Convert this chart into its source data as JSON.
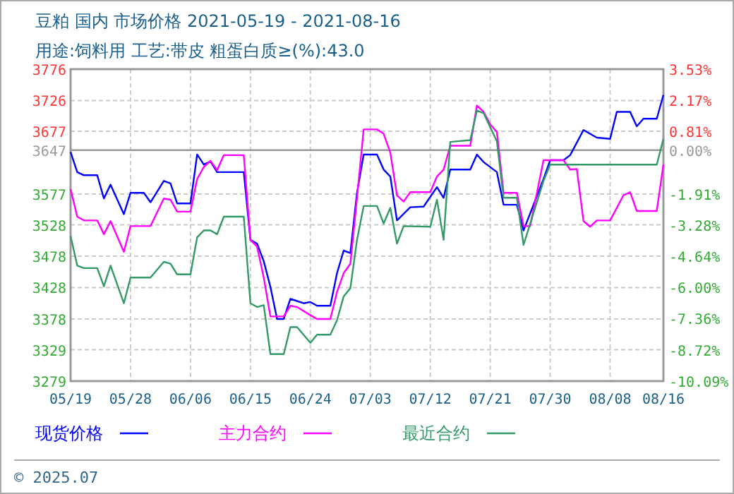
{
  "chart_data": {
    "type": "line",
    "title": "豆粕 国内 市场价格 2021-05-19 - 2021-08-16",
    "subtitle": "用途:饲料用 工艺:带皮 粗蛋白质≥(%):43.0",
    "xlim": [
      "2021-05-19",
      "2021-08-16"
    ],
    "xticks": [
      {
        "value": "2021-05-19",
        "label": "05/19"
      },
      {
        "value": "2021-05-28",
        "label": "05/28"
      },
      {
        "value": "2021-06-06",
        "label": "06/06"
      },
      {
        "value": "2021-06-15",
        "label": "06/15"
      },
      {
        "value": "2021-06-24",
        "label": "06/24"
      },
      {
        "value": "2021-07-03",
        "label": "07/03"
      },
      {
        "value": "2021-07-12",
        "label": "07/12"
      },
      {
        "value": "2021-07-21",
        "label": "07/21"
      },
      {
        "value": "2021-07-30",
        "label": "07/30"
      },
      {
        "value": "2021-08-08",
        "label": "08/08"
      },
      {
        "value": "2021-08-16",
        "label": "08/16"
      }
    ],
    "ylim": [
      3279,
      3776
    ],
    "yticks": [
      3776,
      3726,
      3677,
      3647,
      3577,
      3528,
      3478,
      3428,
      3378,
      3329,
      3279
    ],
    "y2lim": [
      -10.09,
      3.53
    ],
    "y2ticks": [
      {
        "value": 3.53,
        "label": "3.53%"
      },
      {
        "value": 2.17,
        "label": "2.17%"
      },
      {
        "value": 0.81,
        "label": "0.81%"
      },
      {
        "value": 0,
        "label": "0.00%"
      },
      {
        "value": -1.91,
        "label": "-1.91%"
      },
      {
        "value": -3.28,
        "label": "-3.28%"
      },
      {
        "value": -4.64,
        "label": "-4.64%"
      },
      {
        "value": -6.0,
        "label": "-6.00%"
      },
      {
        "value": -7.36,
        "label": "-7.36%"
      },
      {
        "value": -8.72,
        "label": "-8.72%"
      },
      {
        "value": -10.09,
        "label": "-10.09%"
      }
    ],
    "ref_lines": [
      {
        "axis": "y",
        "value": 3647,
        "color": "#999999"
      }
    ],
    "grid": true,
    "legend": "bottom",
    "marker": "none",
    "line_style": "solid",
    "annotations": [
      "© 2025.07"
    ],
    "series": [
      {
        "name": "现货价格",
        "color": "#0000ff",
        "x": [
          "2021-05-19",
          "2021-05-20",
          "2021-05-21",
          "2021-05-23",
          "2021-05-24",
          "2021-05-25",
          "2021-05-27",
          "2021-05-28",
          "2021-05-30",
          "2021-05-31",
          "2021-06-02",
          "2021-06-03",
          "2021-06-04",
          "2021-06-06",
          "2021-06-07",
          "2021-06-08",
          "2021-06-09",
          "2021-06-10",
          "2021-06-14",
          "2021-06-15",
          "2021-06-16",
          "2021-06-17",
          "2021-06-18",
          "2021-06-19",
          "2021-06-20",
          "2021-06-21",
          "2021-06-23",
          "2021-06-24",
          "2021-06-25",
          "2021-06-27",
          "2021-06-28",
          "2021-06-29",
          "2021-06-30",
          "2021-07-01",
          "2021-07-02",
          "2021-07-04",
          "2021-07-05",
          "2021-07-06",
          "2021-07-07",
          "2021-07-09",
          "2021-07-11",
          "2021-07-13",
          "2021-07-14",
          "2021-07-15",
          "2021-07-18",
          "2021-07-19",
          "2021-07-20",
          "2021-07-22",
          "2021-07-23",
          "2021-07-25",
          "2021-07-26",
          "2021-07-29",
          "2021-07-30",
          "2021-08-01",
          "2021-08-02",
          "2021-08-04",
          "2021-08-06",
          "2021-08-08",
          "2021-08-09",
          "2021-08-11",
          "2021-08-12",
          "2021-08-13",
          "2021-08-15",
          "2021-08-16"
        ],
        "values": [
          3644,
          3612,
          3607,
          3607,
          3570,
          3592,
          3545,
          3579,
          3579,
          3564,
          3598,
          3594,
          3562,
          3562,
          3640,
          3624,
          3629,
          3612,
          3612,
          3504,
          3498,
          3470,
          3429,
          3378,
          3378,
          3410,
          3403,
          3405,
          3399,
          3399,
          3451,
          3487,
          3483,
          3579,
          3640,
          3640,
          3616,
          3605,
          3535,
          3556,
          3557,
          3588,
          3571,
          3616,
          3616,
          3640,
          3628,
          3612,
          3560,
          3560,
          3519,
          3601,
          3631,
          3631,
          3639,
          3679,
          3667,
          3665,
          3708,
          3708,
          3685,
          3697,
          3697,
          3735
        ]
      },
      {
        "name": "主力合约",
        "color": "#ff00ff",
        "x": [
          "2021-05-19",
          "2021-05-20",
          "2021-05-21",
          "2021-05-23",
          "2021-05-24",
          "2021-05-25",
          "2021-05-27",
          "2021-05-28",
          "2021-05-31",
          "2021-06-02",
          "2021-06-03",
          "2021-06-04",
          "2021-06-06",
          "2021-06-07",
          "2021-06-08",
          "2021-06-09",
          "2021-06-10",
          "2021-06-11",
          "2021-06-14",
          "2021-06-15",
          "2021-06-16",
          "2021-06-17",
          "2021-06-18",
          "2021-06-20",
          "2021-06-21",
          "2021-06-22",
          "2021-06-24",
          "2021-06-25",
          "2021-06-27",
          "2021-06-28",
          "2021-06-29",
          "2021-06-30",
          "2021-07-01",
          "2021-07-02",
          "2021-07-04",
          "2021-07-05",
          "2021-07-06",
          "2021-07-07",
          "2021-07-08",
          "2021-07-09",
          "2021-07-12",
          "2021-07-13",
          "2021-07-14",
          "2021-07-15",
          "2021-07-18",
          "2021-07-19",
          "2021-07-20",
          "2021-07-21",
          "2021-07-22",
          "2021-07-23",
          "2021-07-25",
          "2021-07-26",
          "2021-07-27",
          "2021-07-29",
          "2021-08-01",
          "2021-08-02",
          "2021-08-03",
          "2021-08-04",
          "2021-08-05",
          "2021-08-06",
          "2021-08-08",
          "2021-08-10",
          "2021-08-11",
          "2021-08-12",
          "2021-08-15",
          "2021-08-16"
        ],
        "values": [
          3585,
          3541,
          3535,
          3535,
          3513,
          3534,
          3485,
          3526,
          3526,
          3570,
          3568,
          3549,
          3549,
          3601,
          3620,
          3630,
          3615,
          3639,
          3639,
          3504,
          3493,
          3444,
          3382,
          3382,
          3399,
          3397,
          3384,
          3378,
          3378,
          3421,
          3451,
          3466,
          3571,
          3680,
          3680,
          3673,
          3643,
          3575,
          3565,
          3580,
          3580,
          3605,
          3616,
          3654,
          3654,
          3718,
          3708,
          3688,
          3676,
          3579,
          3579,
          3526,
          3526,
          3631,
          3631,
          3616,
          3617,
          3534,
          3525,
          3535,
          3535,
          3575,
          3580,
          3550,
          3550,
          3624
        ]
      },
      {
        "name": "最近合约",
        "color": "#339966",
        "x": [
          "2021-05-19",
          "2021-05-20",
          "2021-05-21",
          "2021-05-23",
          "2021-05-24",
          "2021-05-25",
          "2021-05-27",
          "2021-05-28",
          "2021-05-31",
          "2021-06-02",
          "2021-06-03",
          "2021-06-04",
          "2021-06-06",
          "2021-06-07",
          "2021-06-08",
          "2021-06-09",
          "2021-06-10",
          "2021-06-11",
          "2021-06-14",
          "2021-06-15",
          "2021-06-16",
          "2021-06-17",
          "2021-06-18",
          "2021-06-20",
          "2021-06-21",
          "2021-06-22",
          "2021-06-24",
          "2021-06-25",
          "2021-06-27",
          "2021-06-28",
          "2021-06-29",
          "2021-06-30",
          "2021-07-01",
          "2021-07-02",
          "2021-07-04",
          "2021-07-05",
          "2021-07-06",
          "2021-07-07",
          "2021-07-08",
          "2021-07-12",
          "2021-07-13",
          "2021-07-14",
          "2021-07-15",
          "2021-07-18",
          "2021-07-19",
          "2021-07-20",
          "2021-07-22",
          "2021-07-23",
          "2021-07-25",
          "2021-07-26",
          "2021-07-29",
          "2021-07-30",
          "2021-08-15",
          "2021-08-16"
        ],
        "values": [
          3510,
          3463,
          3459,
          3459,
          3430,
          3463,
          3403,
          3444,
          3444,
          3469,
          3466,
          3449,
          3449,
          3508,
          3519,
          3519,
          3513,
          3541,
          3541,
          3403,
          3397,
          3400,
          3322,
          3322,
          3365,
          3365,
          3340,
          3353,
          3353,
          3376,
          3414,
          3427,
          3504,
          3558,
          3558,
          3530,
          3555,
          3498,
          3526,
          3525,
          3568,
          3504,
          3660,
          3663,
          3710,
          3706,
          3661,
          3571,
          3571,
          3496,
          3598,
          3624,
          3624,
          3665
        ]
      }
    ]
  }
}
